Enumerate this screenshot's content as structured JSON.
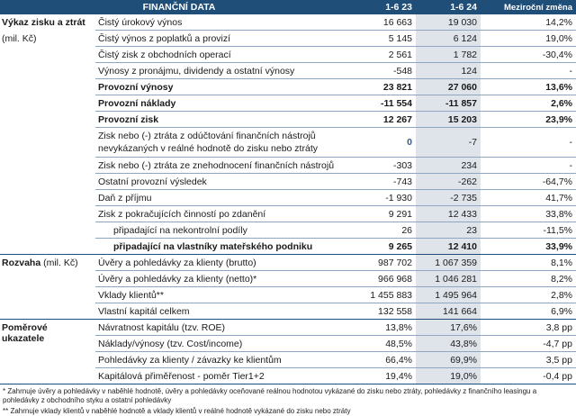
{
  "header": {
    "title": "FINANČNÍ DATA",
    "col1": "1-6 23",
    "col2": "1-6 24",
    "col3": "Meziroční změna"
  },
  "sections": {
    "pl": {
      "label": "Výkaz zisku a ztrát",
      "unit": "(mil. Kč)"
    },
    "bs": {
      "label": "Rozvaha",
      "unit": "(mil. Kč)"
    },
    "ratios": {
      "label": "Poměrové ukazatele"
    }
  },
  "rows": [
    {
      "label": "Čistý úrokový výnos",
      "v1": "16 663",
      "v2": "19 030",
      "ch": "14,2%"
    },
    {
      "label": "Čistý výnos z poplatků a provizí",
      "v1": "5 145",
      "v2": "6 124",
      "ch": "19,0%"
    },
    {
      "label": "Čistý zisk z obchodních operací",
      "v1": "2 561",
      "v2": "1 782",
      "ch": "-30,4%"
    },
    {
      "label": "Výnosy z pronájmu, dividendy a ostatní výnosy",
      "v1": "-548",
      "v2": "124",
      "ch": "-"
    },
    {
      "label": "Provozní výnosy",
      "v1": "23 821",
      "v2": "27 060",
      "ch": "13,6%"
    },
    {
      "label": "Provozní náklady",
      "v1": "-11 554",
      "v2": "-11 857",
      "ch": "2,6%"
    },
    {
      "label": "Provozní zisk",
      "v1": "12 267",
      "v2": "15 203",
      "ch": "23,9%"
    },
    {
      "label": "Zisk nebo (-) ztráta z odúčtování finančních nástrojů nevykázaných v reálné hodnotě do zisku nebo ztráty",
      "v1": "0",
      "v2": "-7",
      "ch": "-"
    },
    {
      "label": "Zisk nebo (-) ztráta ze znehodnocení finančních nástrojů",
      "v1": "-303",
      "v2": "234",
      "ch": "-"
    },
    {
      "label": "Ostatní provozní výsledek",
      "v1": "-743",
      "v2": "-262",
      "ch": "-64,7%"
    },
    {
      "label": "Daň z příjmu",
      "v1": "-1 930",
      "v2": "-2 735",
      "ch": "41,7%"
    },
    {
      "label": "Zisk z pokračujících činností po zdanění",
      "v1": "9 291",
      "v2": "12 433",
      "ch": "33,8%"
    },
    {
      "label": "připadající na nekontrolní podíly",
      "v1": "26",
      "v2": "23",
      "ch": "-11,5%"
    },
    {
      "label": "připadající na vlastníky mateřského podniku",
      "v1": "9 265",
      "v2": "12 410",
      "ch": "33,9%"
    },
    {
      "label": "Úvěry a pohledávky za klienty (brutto)",
      "v1": "987 702",
      "v2": "1 067 359",
      "ch": "8,1%"
    },
    {
      "label": "Úvěry a pohledávky za klienty (netto)*",
      "v1": "966 968",
      "v2": "1 046 281",
      "ch": "8,2%"
    },
    {
      "label": "Vklady klientů**",
      "v1": "1 455 883",
      "v2": "1 495 964",
      "ch": "2,8%"
    },
    {
      "label": "Vlastní kapitál celkem",
      "v1": "132 558",
      "v2": "141 664",
      "ch": "6,9%"
    },
    {
      "label": "Návratnost kapitálu (tzv. ROE)",
      "v1": "13,8%",
      "v2": "17,6%",
      "ch": "3,8 pp"
    },
    {
      "label": "Náklady/výnosy (tzv. Cost/income)",
      "v1": "48,5%",
      "v2": "43,8%",
      "ch": "-4,7 pp"
    },
    {
      "label": "Pohledávky za klienty / závazky ke klientům",
      "v1": "66,4%",
      "v2": "69,9%",
      "ch": "3,5 pp"
    },
    {
      "label": "Kapitálová přiměřenost - poměr Tier1+2",
      "v1": "19,4%",
      "v2": "19,0%",
      "ch": "-0,4 pp"
    }
  ],
  "footnotes": [
    "* Zahrnuje úvěry a pohledávky v naběhlé hodnotě, úvěry a pohledávky oceňované reálnou hodnotou vykázané do zisku nebo ztráty, pohledávky z finančního leasingu a pohledávky z obchodního styku a ostatní pohledávky",
    "** Zahrnuje vklady klientů v naběhlé hodnotě a vklady klientů v reálné hodnotě vykázané do zisku nebo ztráty"
  ],
  "colors": {
    "header": "#1f4e79",
    "shaded_column": "#dfe4eb"
  }
}
